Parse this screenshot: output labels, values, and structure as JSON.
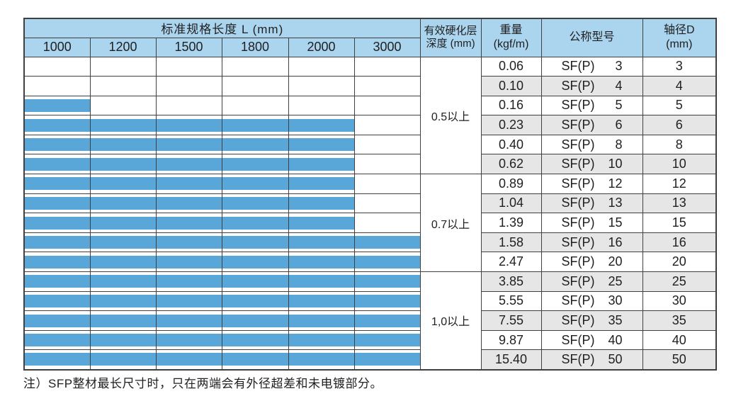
{
  "colors": {
    "header_bg": "#abd4ee",
    "bar_blue": "#59a6d9",
    "alt_row_gray": "#e6e6e6",
    "border": "#404040",
    "text": "#1f1f1f"
  },
  "table": {
    "header": {
      "length_title": "标准规格长度 L (mm)",
      "lengths": [
        "1000",
        "1200",
        "1500",
        "1800",
        "2000",
        "3000"
      ],
      "depth_line1": "有效硬化层",
      "depth_line2": "深度 (mm)",
      "weight_line1": "重量",
      "weight_line2": "(kgf/m)",
      "model": "公称型号",
      "dia_line1": "轴径D",
      "dia_line2": "(mm)"
    },
    "groups": [
      {
        "label": "0.5以上",
        "rows": 6
      },
      {
        "label": "0.7以上",
        "rows": 5
      },
      {
        "label": "1,0以上",
        "rows": 5
      }
    ],
    "rows": [
      {
        "weight": "0.06",
        "model_prefix": "SF(P)",
        "model_size": "3",
        "diameter": "3",
        "length_bars": 0,
        "available_up_to": ""
      },
      {
        "weight": "0.10",
        "model_prefix": "SF(P)",
        "model_size": "4",
        "diameter": "4",
        "length_bars": 0,
        "available_up_to": ""
      },
      {
        "weight": "0.16",
        "model_prefix": "SF(P)",
        "model_size": "5",
        "diameter": "5",
        "length_bars": 1,
        "available_up_to": "1000"
      },
      {
        "weight": "0.23",
        "model_prefix": "SF(P)",
        "model_size": "6",
        "diameter": "6",
        "length_bars": 5,
        "available_up_to": "2000"
      },
      {
        "weight": "0.40",
        "model_prefix": "SF(P)",
        "model_size": "8",
        "diameter": "8",
        "length_bars": 5,
        "available_up_to": "2000"
      },
      {
        "weight": "0.62",
        "model_prefix": "SF(P)",
        "model_size": "10",
        "diameter": "10",
        "length_bars": 5,
        "available_up_to": "2000"
      },
      {
        "weight": "0.89",
        "model_prefix": "SF(P)",
        "model_size": "12",
        "diameter": "12",
        "length_bars": 5,
        "available_up_to": "2000"
      },
      {
        "weight": "1.04",
        "model_prefix": "SF(P)",
        "model_size": "13",
        "diameter": "13",
        "length_bars": 5,
        "available_up_to": "2000"
      },
      {
        "weight": "1.39",
        "model_prefix": "SF(P)",
        "model_size": "15",
        "diameter": "15",
        "length_bars": 5,
        "available_up_to": "2000"
      },
      {
        "weight": "1.58",
        "model_prefix": "SF(P)",
        "model_size": "16",
        "diameter": "16",
        "length_bars": 6,
        "available_up_to": "3000"
      },
      {
        "weight": "2.47",
        "model_prefix": "SF(P)",
        "model_size": "20",
        "diameter": "20",
        "length_bars": 6,
        "available_up_to": "3000"
      },
      {
        "weight": "3.85",
        "model_prefix": "SF(P)",
        "model_size": "25",
        "diameter": "25",
        "length_bars": 6,
        "available_up_to": "3000"
      },
      {
        "weight": "5.55",
        "model_prefix": "SF(P)",
        "model_size": "30",
        "diameter": "30",
        "length_bars": 6,
        "available_up_to": "3000"
      },
      {
        "weight": "7.55",
        "model_prefix": "SF(P)",
        "model_size": "35",
        "diameter": "35",
        "length_bars": 6,
        "available_up_to": "3000"
      },
      {
        "weight": "9.87",
        "model_prefix": "SF(P)",
        "model_size": "40",
        "diameter": "40",
        "length_bars": 6,
        "available_up_to": "3000"
      },
      {
        "weight": "15.40",
        "model_prefix": "SF(P)",
        "model_size": "50",
        "diameter": "50",
        "length_bars": 6,
        "available_up_to": "3000"
      }
    ]
  },
  "note": "注）SFP整材最长尺寸时，只在两端会有外径超差和未电镀部分。"
}
